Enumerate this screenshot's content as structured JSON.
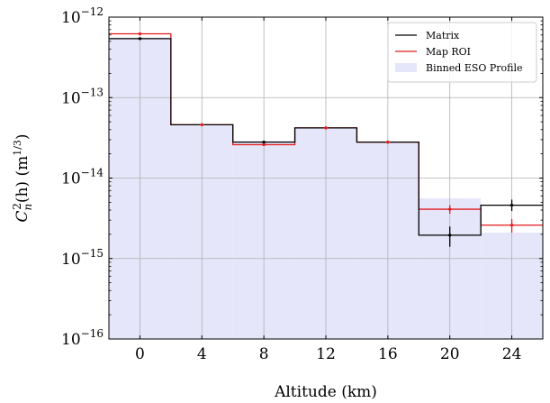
{
  "chart_data": {
    "type": "line",
    "title": "",
    "xlabel": "Altitude (km)",
    "ylabel": "C_n^2(h) (m^{1/3})",
    "ylabel_parts": {
      "main": "C",
      "sub": "n",
      "sup": "2",
      "arg": "(h) (m",
      "unit_sup": "1/3",
      "close": ")"
    },
    "yscale": "log",
    "xlim": [
      -2,
      26
    ],
    "ylim_exp": [
      -16,
      -12
    ],
    "x_ticks": [
      0,
      4,
      8,
      12,
      16,
      20,
      24
    ],
    "x_tick_labels": [
      "0",
      "4",
      "8",
      "12",
      "16",
      "20",
      "24"
    ],
    "y_ticks_exp": [
      -16,
      -15,
      -14,
      -13,
      -12
    ],
    "y_tick_base": "10",
    "y_tick_exponents": [
      "−16",
      "−15",
      "−14",
      "−13",
      "−12"
    ],
    "grid": true,
    "legend_position": "top-right",
    "bin_edges": [
      -2,
      2,
      6,
      10,
      14,
      18,
      22,
      26
    ],
    "bin_centers": [
      0,
      4,
      8,
      12,
      16,
      20,
      24
    ],
    "series": [
      {
        "name": "Matrix",
        "kind": "step",
        "color": "#000000",
        "values": [
          5.4e-13,
          4.6e-14,
          2.8e-14,
          4.2e-14,
          2.8e-14,
          1.95e-15,
          4.6e-15
        ],
        "err_low": [
          5.25e-13,
          4.5e-14,
          2.7e-14,
          4.1e-14,
          2.75e-14,
          1.4e-15,
          3.9e-15
        ],
        "err_high": [
          5.55e-13,
          4.7e-14,
          2.9e-14,
          4.3e-14,
          2.85e-14,
          2.5e-15,
          5.4e-15
        ]
      },
      {
        "name": "Map ROI",
        "kind": "step",
        "color": "#e31a1c",
        "values": [
          6.2e-13,
          4.6e-14,
          2.6e-14,
          4.2e-14,
          2.8e-14,
          4.1e-15,
          2.6e-15
        ],
        "err_low": [
          6.05e-13,
          4.5e-14,
          2.5e-14,
          4.1e-14,
          2.75e-14,
          3.6e-15,
          2.1e-15
        ],
        "err_high": [
          6.35e-13,
          4.7e-14,
          2.7e-14,
          4.3e-14,
          2.85e-14,
          4.6e-15,
          3.1e-15
        ]
      },
      {
        "name": "Binned ESO Profile",
        "kind": "fill",
        "color": "#e6e6fa",
        "values": [
          5.6e-13,
          4.5e-14,
          2.9e-14,
          4.2e-14,
          2.8e-14,
          5.6e-15,
          2.1e-15
        ]
      }
    ]
  }
}
